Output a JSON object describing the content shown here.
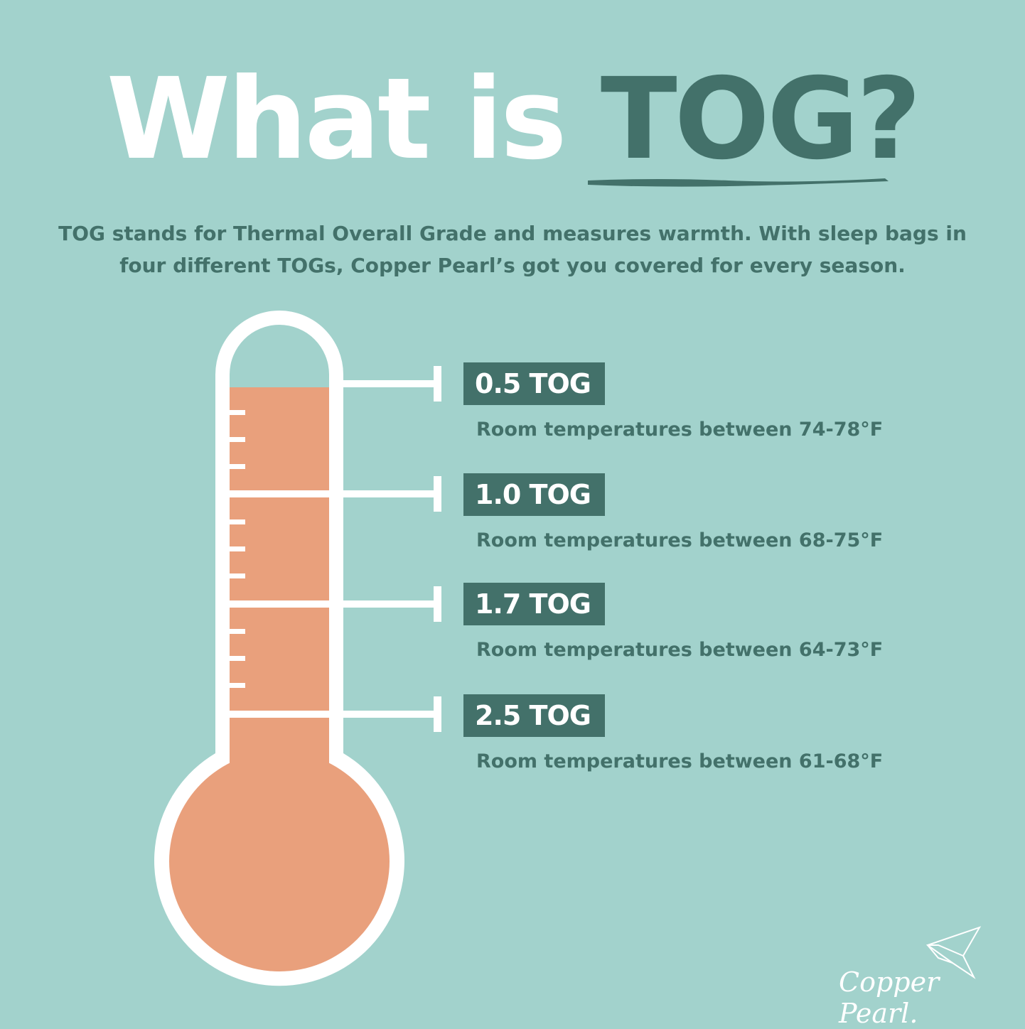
{
  "title": {
    "part1": "What is",
    "part2": "TOG?"
  },
  "intro": "TOG stands for Thermal Overall Grade and measures warmth. With sleep bags in four different TOGs, Copper Pearl’s got you covered for every season.",
  "levels": [
    {
      "label": "0.5 TOG",
      "range": "Room temperatures between 74-78°F"
    },
    {
      "label": "1.0 TOG",
      "range": "Room temperatures between 68-75°F"
    },
    {
      "label": "1.7 TOG",
      "range": "Room temperatures between 64-73°F"
    },
    {
      "label": "2.5 TOG",
      "range": "Room temperatures between 61-68°F"
    }
  ],
  "brand": "Copper Pearl.",
  "colors": {
    "background": "#a2d2cc",
    "dark": "#43716a",
    "fill": "#e9a07c",
    "white": "#ffffff"
  },
  "icons": {
    "thermometer": "thermometer-icon",
    "logo": "origami-bird-icon"
  }
}
